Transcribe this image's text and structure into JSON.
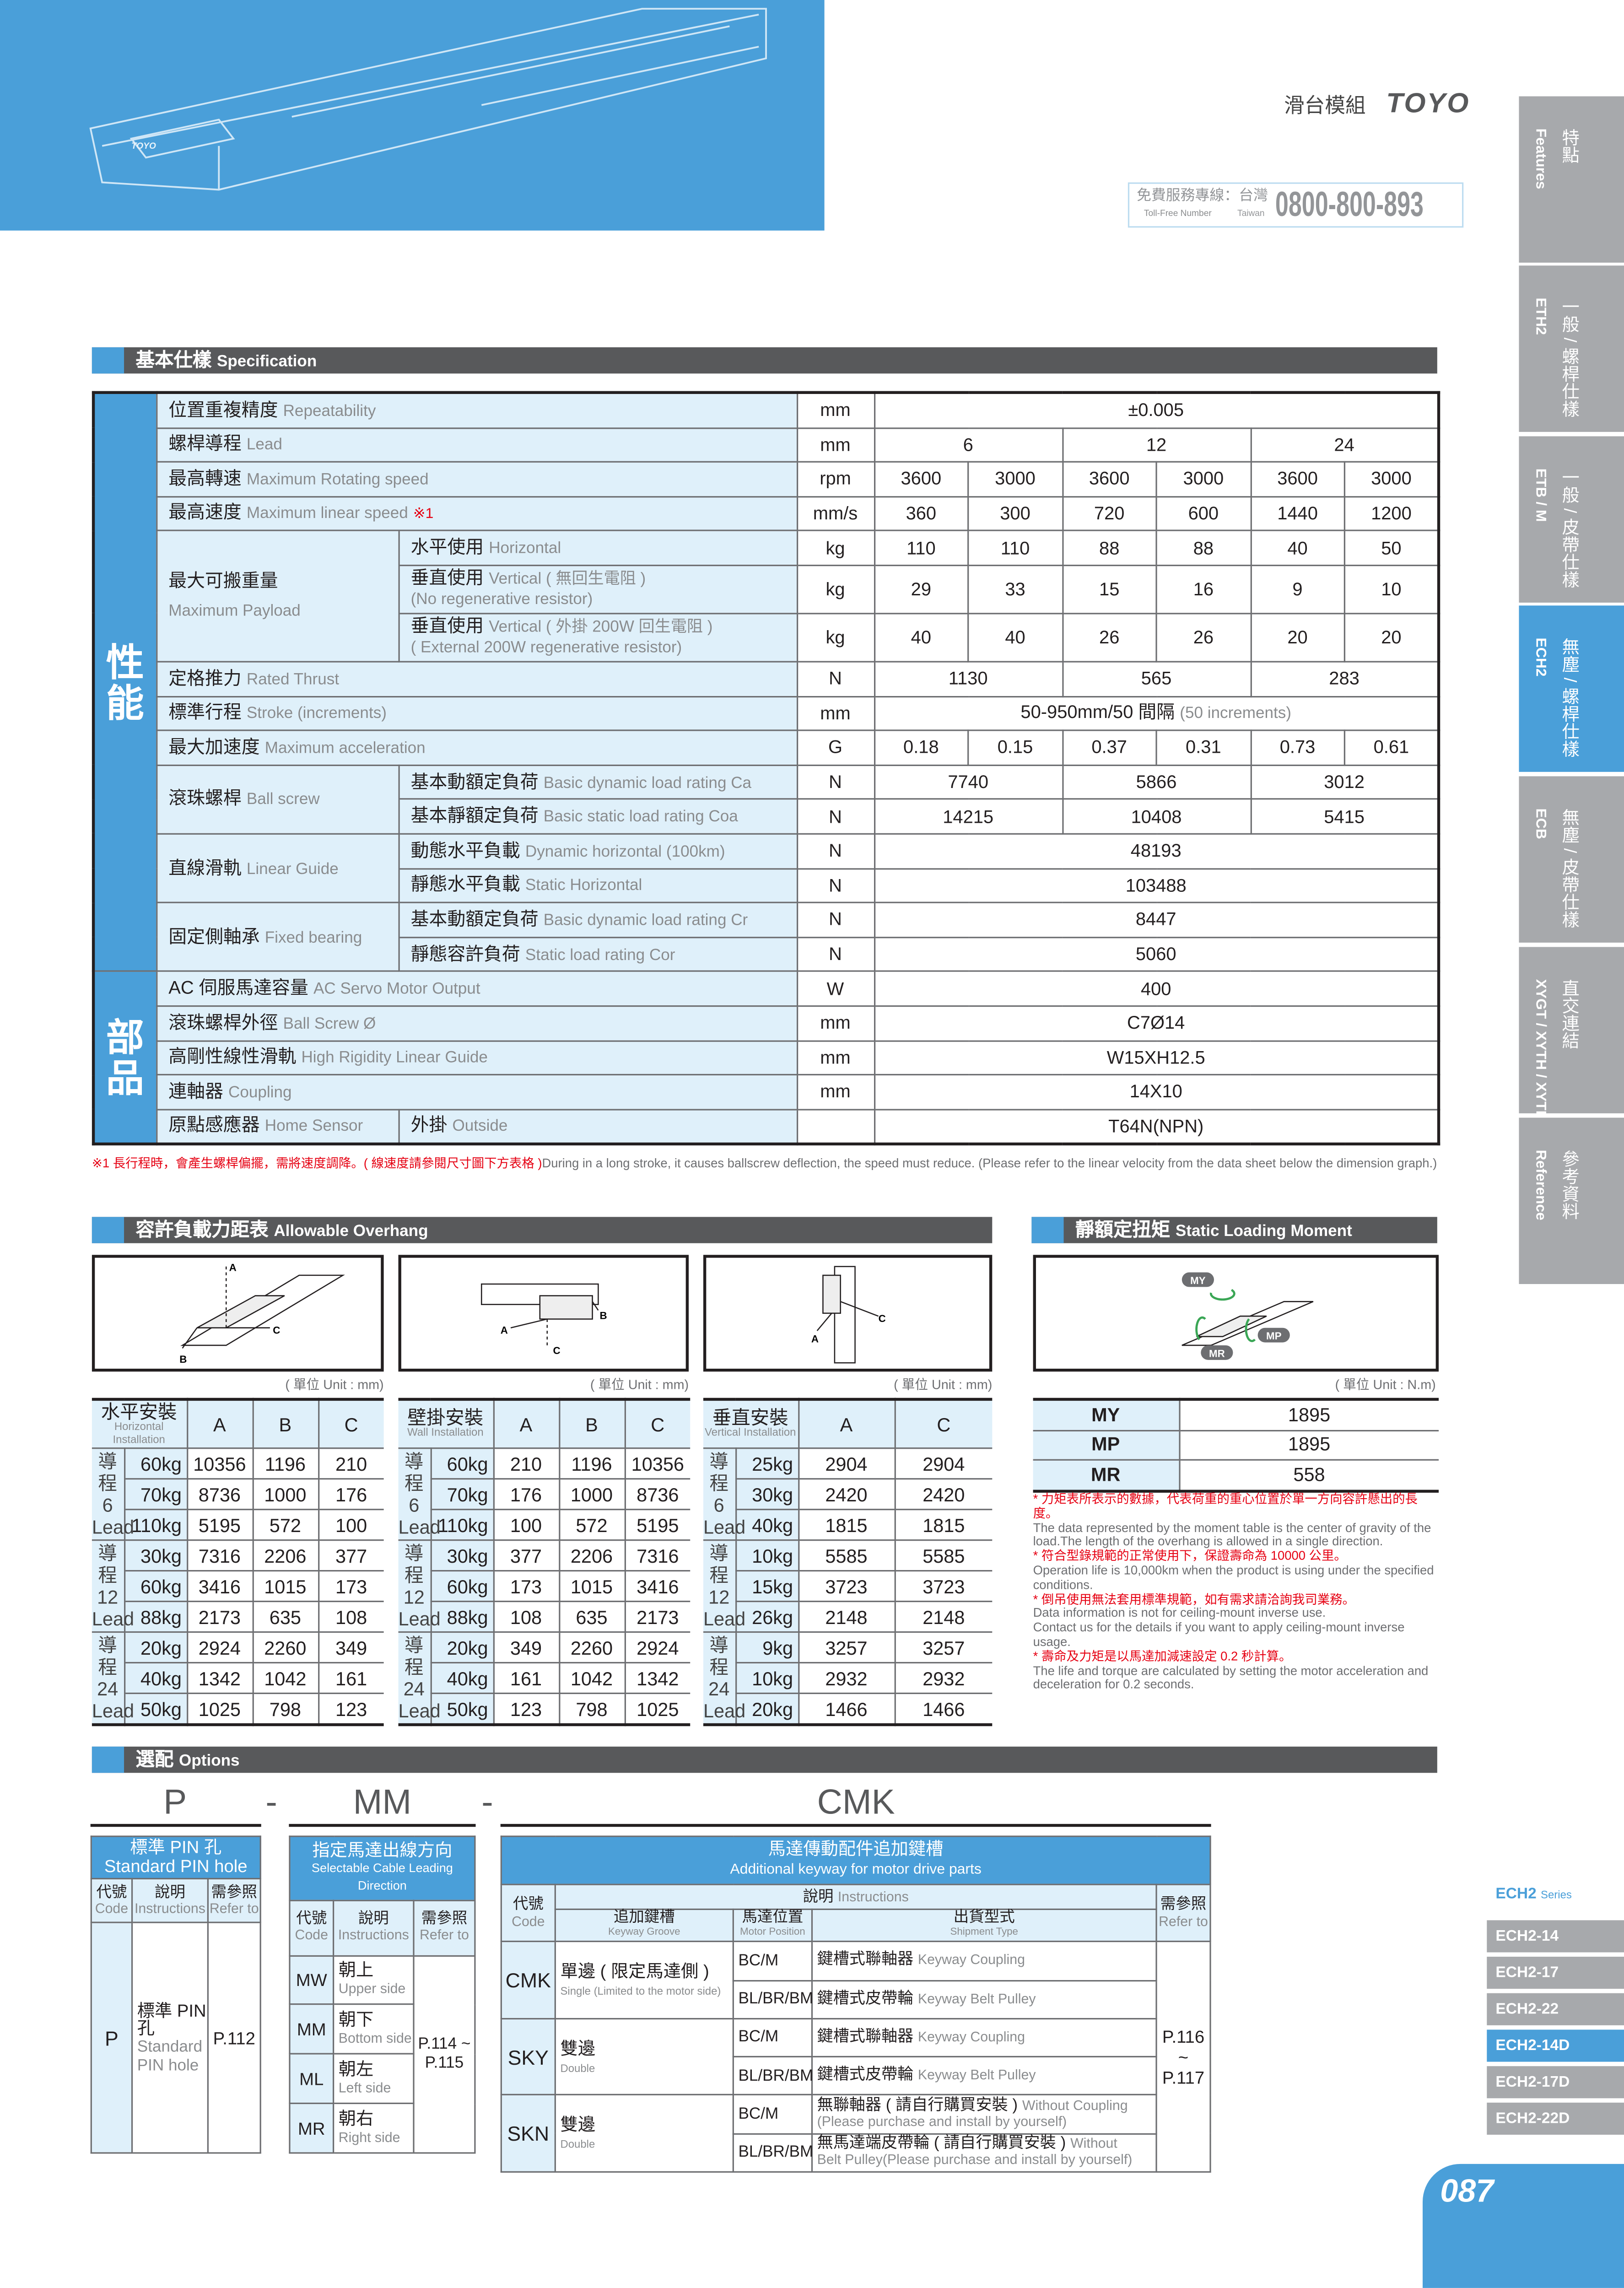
{
  "header": {
    "product_zh": "滑台模組",
    "brand": "TOYO",
    "phone_zh": "免費服務專線：台灣",
    "phone_en": "Toll-Free Number",
    "phone_region_en": "Taiwan",
    "phone_number": "0800-800-893",
    "product_image_labels": [
      "TOYO"
    ]
  },
  "nav_tabs": [
    {
      "zh": "特點",
      "en": "Features",
      "active": false
    },
    {
      "zh": "一般 / 螺桿仕樣",
      "en": "ETH2",
      "active": false
    },
    {
      "zh": "一般 / 皮帶仕樣",
      "en": "ETB / M",
      "active": false
    },
    {
      "zh": "無塵 / 螺桿仕樣",
      "en": "ECH2",
      "active": true
    },
    {
      "zh": "無塵 / 皮帶仕樣",
      "en": "ECB",
      "active": false
    },
    {
      "zh": "直交連結",
      "en": "XYGT / XYTH / XYTB",
      "active": false
    },
    {
      "zh": "參考資料",
      "en": "Reference",
      "active": false
    }
  ],
  "series": {
    "title": "ECH2",
    "suffix": "Series",
    "items": [
      "ECH2-14",
      "ECH2-17",
      "ECH2-22",
      "ECH2-14D",
      "ECH2-17D",
      "ECH2-22D"
    ],
    "active": "ECH2-14D"
  },
  "page_number": "087",
  "colors": {
    "accent": "#4a9fd9",
    "light": "#dff0fa",
    "dark_bar": "#58595b",
    "tab_gray": "#a7a9ac",
    "note_red": "#e60012"
  },
  "spec": {
    "title_zh": "基本仕樣",
    "title_en": "Specification",
    "cat_performance": "性能",
    "cat_parts": "部品",
    "repeat": {
      "zh": "位置重複精度",
      "en": "Repeatability",
      "unit": "mm",
      "value": "±0.005"
    },
    "lead": {
      "zh": "螺桿導程",
      "en": "Lead",
      "unit": "mm",
      "values": [
        "6",
        "12",
        "24"
      ]
    },
    "rpm": {
      "zh": "最高轉速",
      "en": "Maximum Rotating speed",
      "unit": "rpm",
      "values": [
        "3600",
        "3000",
        "3600",
        "3000",
        "3600",
        "3000"
      ]
    },
    "speed": {
      "zh": "最高速度",
      "en": "Maximum linear speed",
      "mark": "※1",
      "unit": "mm/s",
      "values": [
        "360",
        "300",
        "720",
        "600",
        "1440",
        "1200"
      ]
    },
    "payload": {
      "zh": "最大可搬重量",
      "en": "Maximum Payload",
      "horizontal": {
        "zh": "水平使用",
        "en": "Horizontal",
        "unit": "kg",
        "values": [
          "110",
          "110",
          "88",
          "88",
          "40",
          "50"
        ]
      },
      "vertical": {
        "zh": "垂直使用",
        "en": "Vertical ( 無回生電阻 )",
        "en2": "(No regenerative resistor)",
        "unit": "kg",
        "values": [
          "29",
          "33",
          "15",
          "16",
          "9",
          "10"
        ]
      },
      "vertical_ext": {
        "zh": "垂直使用",
        "en": "Vertical ( 外掛 200W 回生電阻 )",
        "en2": "( External 200W regenerative resistor)",
        "unit": "kg",
        "values": [
          "40",
          "40",
          "26",
          "26",
          "20",
          "20"
        ]
      }
    },
    "thrust": {
      "zh": "定格推力",
      "en": "Rated Thrust",
      "unit": "N",
      "values": [
        "1130",
        "565",
        "283"
      ]
    },
    "stroke": {
      "zh": "標準行程",
      "en": "Stroke (increments)",
      "unit": "mm",
      "value": "50-950mm/50 間隔",
      "value_note": "(50 increments)"
    },
    "accel": {
      "zh": "最大加速度",
      "en": "Maximum acceleration",
      "unit": "G",
      "values": [
        "0.18",
        "0.15",
        "0.37",
        "0.31",
        "0.73",
        "0.61"
      ]
    },
    "ballscrew": {
      "zh": "滾珠螺桿",
      "en": "Ball screw",
      "ca": {
        "zh": "基本動額定負荷",
        "en": "Basic dynamic load rating Ca",
        "unit": "N",
        "values": [
          "7740",
          "5866",
          "3012"
        ]
      },
      "coa": {
        "zh": "基本靜額定負荷",
        "en": "Basic static load rating Coa",
        "unit": "N",
        "values": [
          "14215",
          "10408",
          "5415"
        ]
      }
    },
    "guide": {
      "zh": "直線滑軌",
      "en": "Linear Guide",
      "dyn": {
        "zh": "動態水平負載",
        "en": "Dynamic horizontal (100km)",
        "unit": "N",
        "value": "48193"
      },
      "stat": {
        "zh": "靜態水平負載",
        "en": "Static Horizontal",
        "unit": "N",
        "value": "103488"
      }
    },
    "bearing": {
      "zh": "固定側軸承",
      "en": "Fixed bearing",
      "cr": {
        "zh": "基本動額定負荷",
        "en": "Basic dynamic load rating Cr",
        "unit": "N",
        "value": "8447"
      },
      "cor": {
        "zh": "靜態容許負荷",
        "en": "Static load rating Cor",
        "unit": "N",
        "value": "5060"
      }
    },
    "motor": {
      "zh": "AC 伺服馬達容量",
      "en": "AC Servo Motor Output",
      "unit": "W",
      "value": "400"
    },
    "screw_dia": {
      "zh": "滾珠螺桿外徑",
      "en": "Ball Screw Ø",
      "unit": "mm",
      "value": "C7Ø14"
    },
    "rail": {
      "zh": "高剛性線性滑軌",
      "en": "High Rigidity Linear Guide",
      "unit": "mm",
      "value": "W15XH12.5"
    },
    "coupling": {
      "zh": "連軸器",
      "en": "Coupling",
      "unit": "mm",
      "value": "14X10"
    },
    "sensor": {
      "zh": "原點感應器",
      "en": "Home Sensor",
      "sub_zh": "外掛",
      "sub_en": "Outside",
      "unit": "",
      "value": "T64N(NPN)"
    },
    "footnote_red": "※1 長行程時，會產生螺桿偏擺，需將速度調降。( 線速度請參閱尺寸圖下方表格 )",
    "footnote_en": "During in a long stroke, it causes ballscrew deflection, the speed must reduce. (Please refer to the linear velocity from the data sheet below the dimension graph.)"
  },
  "overhang": {
    "title_zh": "容許負載力距表",
    "title_en": "Allowable Overhang",
    "unit": "( 單位 Unit : mm)",
    "lead_zh": "導程",
    "lead_en": "Lead",
    "tables": [
      {
        "zh": "水平安裝",
        "en": "Horizontal Installation",
        "cols": [
          "A",
          "B",
          "C"
        ],
        "groups": [
          {
            "lead": "6",
            "rows": [
              [
                "60kg",
                "10356",
                "1196",
                "210"
              ],
              [
                "70kg",
                "8736",
                "1000",
                "176"
              ],
              [
                "110kg",
                "5195",
                "572",
                "100"
              ]
            ]
          },
          {
            "lead": "12",
            "rows": [
              [
                "30kg",
                "7316",
                "2206",
                "377"
              ],
              [
                "60kg",
                "3416",
                "1015",
                "173"
              ],
              [
                "88kg",
                "2173",
                "635",
                "108"
              ]
            ]
          },
          {
            "lead": "24",
            "rows": [
              [
                "20kg",
                "2924",
                "2260",
                "349"
              ],
              [
                "40kg",
                "1342",
                "1042",
                "161"
              ],
              [
                "50kg",
                "1025",
                "798",
                "123"
              ]
            ]
          }
        ]
      },
      {
        "zh": "壁掛安裝",
        "en": "Wall Installation",
        "cols": [
          "A",
          "B",
          "C"
        ],
        "groups": [
          {
            "lead": "6",
            "rows": [
              [
                "60kg",
                "210",
                "1196",
                "10356"
              ],
              [
                "70kg",
                "176",
                "1000",
                "8736"
              ],
              [
                "110kg",
                "100",
                "572",
                "5195"
              ]
            ]
          },
          {
            "lead": "12",
            "rows": [
              [
                "30kg",
                "377",
                "2206",
                "7316"
              ],
              [
                "60kg",
                "173",
                "1015",
                "3416"
              ],
              [
                "88kg",
                "108",
                "635",
                "2173"
              ]
            ]
          },
          {
            "lead": "24",
            "rows": [
              [
                "20kg",
                "349",
                "2260",
                "2924"
              ],
              [
                "40kg",
                "161",
                "1042",
                "1342"
              ],
              [
                "50kg",
                "123",
                "798",
                "1025"
              ]
            ]
          }
        ]
      },
      {
        "zh": "垂直安裝",
        "en": "Vertical Installation",
        "cols": [
          "A",
          "C"
        ],
        "groups": [
          {
            "lead": "6",
            "rows": [
              [
                "25kg",
                "2904",
                "2904"
              ],
              [
                "30kg",
                "2420",
                "2420"
              ],
              [
                "40kg",
                "1815",
                "1815"
              ]
            ]
          },
          {
            "lead": "12",
            "rows": [
              [
                "10kg",
                "5585",
                "5585"
              ],
              [
                "15kg",
                "3723",
                "3723"
              ],
              [
                "26kg",
                "2148",
                "2148"
              ]
            ]
          },
          {
            "lead": "24",
            "rows": [
              [
                "9kg",
                "3257",
                "3257"
              ],
              [
                "10kg",
                "2932",
                "2932"
              ],
              [
                "20kg",
                "1466",
                "1466"
              ]
            ]
          }
        ]
      }
    ],
    "diagram_labels": [
      "A",
      "B",
      "C"
    ]
  },
  "moment": {
    "title_zh": "靜額定扭矩",
    "title_en": "Static Loading Moment",
    "unit": "( 單位 Unit : N.m)",
    "rows": [
      [
        "MY",
        "1895"
      ],
      [
        "MP",
        "1895"
      ],
      [
        "MR",
        "558"
      ]
    ],
    "notes": [
      {
        "zh": "* 力矩表所表示的數據，代表荷重的重心位置於單一方向容許懸出的長度。",
        "en": "The data represented by the moment table is the center of gravity of the load.The length of the overhang is allowed in a single direction."
      },
      {
        "zh": "* 符合型錄規範的正常使用下，保證壽命為 10000 公里。",
        "en": "Operation life is 10,000km when the product is using under the specified conditions."
      },
      {
        "zh": "* 倒吊使用無法套用標準規範，如有需求請洽詢我司業務。",
        "en": "Data information is not for ceiling-mount inverse use.",
        "en2": "Contact us for the details if you want to apply ceiling-mount inverse usage."
      },
      {
        "zh": "* 壽命及力矩是以馬達加減速設定 0.2 秒計算。",
        "en": "The life and torque are calculated by setting the motor acceleration and deceleration for 0.2 seconds."
      }
    ]
  },
  "options": {
    "title_zh": "選配",
    "title_en": "Options",
    "code_p": "P",
    "dash": "-",
    "code_mm": "MM",
    "code_cmk": "CMK",
    "hdr": {
      "code_zh": "代號",
      "code_en": "Code",
      "ins_zh": "說明",
      "ins_en": "Instructions",
      "ref_zh": "需參照",
      "ref_en": "Refer to"
    },
    "pin": {
      "title_zh": "標準 PIN 孔",
      "title_en": "Standard PIN hole",
      "code": "P",
      "desc_zh": "標準 PIN 孔",
      "desc_en": "Standard PIN hole",
      "ref": "P.112"
    },
    "cable": {
      "title_zh": "指定馬達出線方向",
      "title_en": "Selectable Cable Leading Direction",
      "ref": "P.114 ~ P.115",
      "rows": [
        {
          "code": "MW",
          "zh": "朝上",
          "en": "Upper side"
        },
        {
          "code": "MM",
          "zh": "朝下",
          "en": "Bottom side"
        },
        {
          "code": "ML",
          "zh": "朝左",
          "en": "Left side"
        },
        {
          "code": "MR",
          "zh": "朝右",
          "en": "Right side"
        }
      ]
    },
    "keyway": {
      "title_zh": "馬達傳動配件追加鍵槽",
      "title_en": "Additional keyway for motor drive parts",
      "col_groove_zh": "追加鍵槽",
      "col_groove_en": "Keyway Groove",
      "col_pos_zh": "馬達位置",
      "col_pos_en": "Motor Position",
      "col_ship_zh": "出貨型式",
      "col_ship_en": "Shipment Type",
      "ref": "P.116 ~ P.117",
      "rows": [
        {
          "code": "CMK",
          "zh": "單邊 ( 限定馬達側 )",
          "en": "Single (Limited to the motor side)",
          "items": [
            {
              "pos": "BC/M",
              "zh": "鍵槽式聯軸器",
              "en": "Keyway Coupling"
            },
            {
              "pos": "BL/BR/BM",
              "zh": "鍵槽式皮帶輪",
              "en": "Keyway Belt Pulley"
            }
          ]
        },
        {
          "code": "SKY",
          "zh": "雙邊",
          "en": "Double",
          "items": [
            {
              "pos": "BC/M",
              "zh": "鍵槽式聯軸器",
              "en": "Keyway Coupling"
            },
            {
              "pos": "BL/BR/BM",
              "zh": "鍵槽式皮帶輪",
              "en": "Keyway Belt Pulley"
            }
          ]
        },
        {
          "code": "SKN",
          "zh": "雙邊",
          "en": "Double",
          "items": [
            {
              "pos": "BC/M",
              "zh": "無聯軸器 ( 請自行購買安裝 )",
              "en": "Without Coupling",
              "en2": "(Please purchase and install by yourself)"
            },
            {
              "pos": "BL/BR/BM",
              "zh": "無馬達端皮帶輪 ( 請自行購買安裝 )",
              "en": "Without",
              "en2": "Belt Pulley(Please purchase and install by yourself)"
            }
          ]
        }
      ]
    }
  }
}
